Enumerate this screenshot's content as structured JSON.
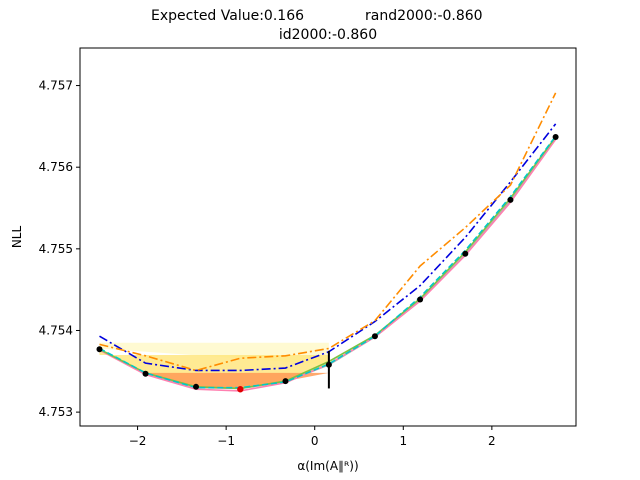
{
  "chart_data": {
    "type": "line",
    "title": {
      "line1_left": "Expected Value:0.166",
      "line1_right": "rand2000:-0.860",
      "line2": "id2000:-0.860"
    },
    "xlabel": "α(Im(A∥ᴿ))",
    "ylabel": "NLL",
    "xlim": [
      -2.65,
      2.95
    ],
    "ylim": [
      4.75283,
      4.75746
    ],
    "x_ticks": [
      -2,
      -1,
      0,
      1,
      2
    ],
    "x_tick_labels": [
      "−2",
      "−1",
      "0",
      "1",
      "2"
    ],
    "y_ticks": [
      4.753,
      4.754,
      4.755,
      4.756,
      4.757
    ],
    "y_tick_labels": [
      "4.753",
      "4.754",
      "4.755",
      "4.756",
      "4.757"
    ],
    "x": [
      -2.43,
      -1.91,
      -1.34,
      -0.84,
      -0.33,
      0.16,
      0.68,
      1.19,
      1.7,
      2.21,
      2.72
    ],
    "series": [
      {
        "name": "rand2000",
        "color": "#ff8c00",
        "style": "dashdot",
        "values": [
          4.75383,
          4.75369,
          4.75351,
          4.75366,
          4.75369,
          4.75378,
          4.75412,
          4.75479,
          4.75526,
          4.75578,
          4.75691
        ]
      },
      {
        "name": "id2000",
        "color": "#0000dd",
        "style": "dashdot",
        "values": [
          4.75393,
          4.7536,
          4.75351,
          4.75351,
          4.75354,
          4.75374,
          4.75411,
          4.75455,
          4.75514,
          4.75582,
          4.75653
        ]
      },
      {
        "name": "cyan",
        "color": "#00c8c8",
        "style": "dashed",
        "values": [
          4.75378,
          4.75348,
          4.7533,
          4.7533,
          4.75337,
          4.75359,
          4.75393,
          4.75441,
          4.75498,
          4.75564,
          4.75638
        ]
      },
      {
        "name": "lime",
        "color": "#80c040",
        "style": "solid",
        "values": [
          4.75377,
          4.75348,
          4.75331,
          4.75329,
          4.75338,
          4.75362,
          4.75394,
          4.75439,
          4.75496,
          4.75562,
          4.75637
        ]
      },
      {
        "name": "pink",
        "color": "#ff80b0",
        "style": "solid",
        "values": [
          4.75376,
          4.75346,
          4.75328,
          4.75326,
          4.75336,
          4.75359,
          4.75392,
          4.75436,
          4.75492,
          4.75557,
          4.75634
        ]
      },
      {
        "name": "gray",
        "color": "#b0b0b0",
        "style": "solid",
        "values": [
          4.75377,
          4.75347,
          4.7533,
          4.75329,
          4.75337,
          4.75358,
          4.75392,
          4.75437,
          4.75493,
          4.75559,
          4.75635
        ]
      }
    ],
    "black_points": [
      {
        "x": -2.43,
        "y": 4.75377
      },
      {
        "x": -1.91,
        "y": 4.75347
      },
      {
        "x": -1.34,
        "y": 4.75331
      },
      {
        "x": -0.33,
        "y": 4.75338
      },
      {
        "x": 0.16,
        "y": 4.75358
      },
      {
        "x": 0.68,
        "y": 4.75393
      },
      {
        "x": 1.19,
        "y": 4.75438
      },
      {
        "x": 1.7,
        "y": 4.75494
      },
      {
        "x": 2.21,
        "y": 4.7556
      },
      {
        "x": 2.72,
        "y": 4.75637
      }
    ],
    "minimum_point": {
      "x": -0.84,
      "y": 4.75328,
      "color": "#e00000"
    },
    "error_bar": {
      "x": 0.16,
      "low": 4.75329,
      "high": 4.75375
    },
    "bands": [
      {
        "name": "band-light-yellow",
        "color": "#fffacd",
        "opacity": 0.9,
        "x": [
          -2.43,
          0.16
        ],
        "top": [
          4.75385,
          4.75385
        ],
        "bottom": [
          4.75378,
          4.75358
        ]
      },
      {
        "name": "band-yellow",
        "color": "#ffe680",
        "opacity": 0.85,
        "x": [
          -2.43,
          -1.91,
          -1.34,
          -0.84,
          -0.33,
          0.16
        ],
        "top": [
          4.7537,
          4.7537,
          4.7537,
          4.7537,
          4.7537,
          4.7537
        ],
        "bottom": [
          4.75378,
          4.75348,
          4.75331,
          4.75329,
          4.75338,
          4.75358
        ]
      },
      {
        "name": "band-orange",
        "color": "#ff9a55",
        "opacity": 0.85,
        "x": [
          -1.91,
          -1.34,
          -0.84,
          -0.33,
          0.16
        ],
        "top": [
          4.75348,
          4.75348,
          4.75348,
          4.75348,
          4.75348
        ],
        "bottom": [
          4.75348,
          4.75331,
          4.75329,
          4.75338,
          4.75348
        ]
      }
    ]
  }
}
